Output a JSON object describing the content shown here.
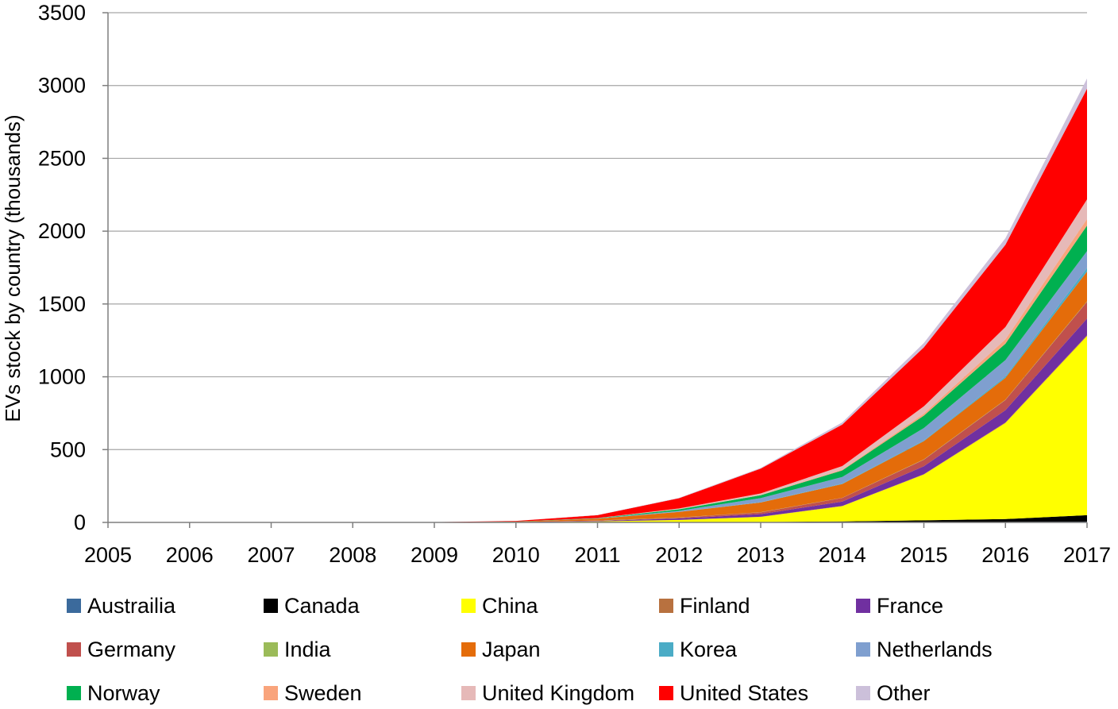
{
  "chart_data": {
    "type": "area",
    "stacked": true,
    "title": "",
    "xlabel": "",
    "ylabel": "EVs stock by country (thousands)",
    "x": [
      "2005",
      "2006",
      "2007",
      "2008",
      "2009",
      "2010",
      "2011",
      "2012",
      "2013",
      "2014",
      "2015",
      "2016",
      "2017"
    ],
    "ylim": [
      0,
      3500
    ],
    "yticks": [
      "0",
      "500",
      "1000",
      "1500",
      "2000",
      "2500",
      "3000",
      "3500"
    ],
    "grid": true,
    "legend_position": "bottom",
    "series": [
      {
        "name": "Austrailia",
        "color": "#3b6a9c",
        "values": [
          0,
          0,
          0,
          0,
          0,
          0,
          0,
          0,
          0,
          1,
          2,
          3,
          5
        ]
      },
      {
        "name": "Canada",
        "color": "#000000",
        "values": [
          0,
          0,
          0,
          0,
          0,
          0,
          1,
          2,
          3,
          6,
          12,
          20,
          45
        ]
      },
      {
        "name": "China",
        "color": "#ffff00",
        "values": [
          0,
          0,
          0,
          0,
          0,
          1,
          6,
          15,
          35,
          105,
          315,
          660,
          1230
        ]
      },
      {
        "name": "Finland",
        "color": "#b8713f",
        "values": [
          0,
          0,
          0,
          0,
          0,
          0,
          0,
          0,
          1,
          1,
          2,
          3,
          5
        ]
      },
      {
        "name": "France",
        "color": "#7030a0",
        "values": [
          0,
          0,
          0,
          0,
          0,
          1,
          3,
          10,
          18,
          30,
          55,
          85,
          115
        ]
      },
      {
        "name": "Germany",
        "color": "#c0504d",
        "values": [
          0,
          0,
          0,
          0,
          0,
          1,
          2,
          6,
          12,
          25,
          45,
          70,
          115
        ]
      },
      {
        "name": "India",
        "color": "#9bbb59",
        "values": [
          0,
          0,
          0,
          0,
          0,
          0,
          1,
          1,
          1,
          1,
          2,
          2,
          3
        ]
      },
      {
        "name": "Japan",
        "color": "#e46c0a",
        "values": [
          0,
          0,
          0,
          0,
          0,
          2,
          13,
          38,
          67,
          95,
          125,
          150,
          205
        ]
      },
      {
        "name": "Korea",
        "color": "#4bacc6",
        "values": [
          0,
          0,
          0,
          0,
          0,
          0,
          0,
          1,
          2,
          3,
          5,
          10,
          25
        ]
      },
      {
        "name": "Netherlands",
        "color": "#7f9fcf",
        "values": [
          0,
          0,
          0,
          0,
          0,
          0,
          1,
          7,
          28,
          45,
          85,
          112,
          115
        ]
      },
      {
        "name": "Norway",
        "color": "#00b050",
        "values": [
          0,
          0,
          0,
          0,
          0,
          1,
          2,
          10,
          20,
          45,
          85,
          112,
          175
        ]
      },
      {
        "name": "Sweden",
        "color": "#f9a47c",
        "values": [
          0,
          0,
          0,
          0,
          0,
          0,
          0,
          1,
          2,
          5,
          14,
          30,
          45
        ]
      },
      {
        "name": "United Kingdom",
        "color": "#e6b9b8",
        "values": [
          0,
          0,
          0,
          0,
          0,
          0,
          1,
          5,
          10,
          25,
          50,
          85,
          135
        ]
      },
      {
        "name": "United States",
        "color": "#ff0000",
        "values": [
          0,
          0,
          0,
          0,
          2,
          4,
          20,
          70,
          170,
          285,
          405,
          565,
          760
        ]
      },
      {
        "name": "Other",
        "color": "#ccc0da",
        "values": [
          0,
          0,
          0,
          0,
          0,
          0,
          1,
          3,
          5,
          15,
          30,
          45,
          70
        ]
      }
    ]
  }
}
